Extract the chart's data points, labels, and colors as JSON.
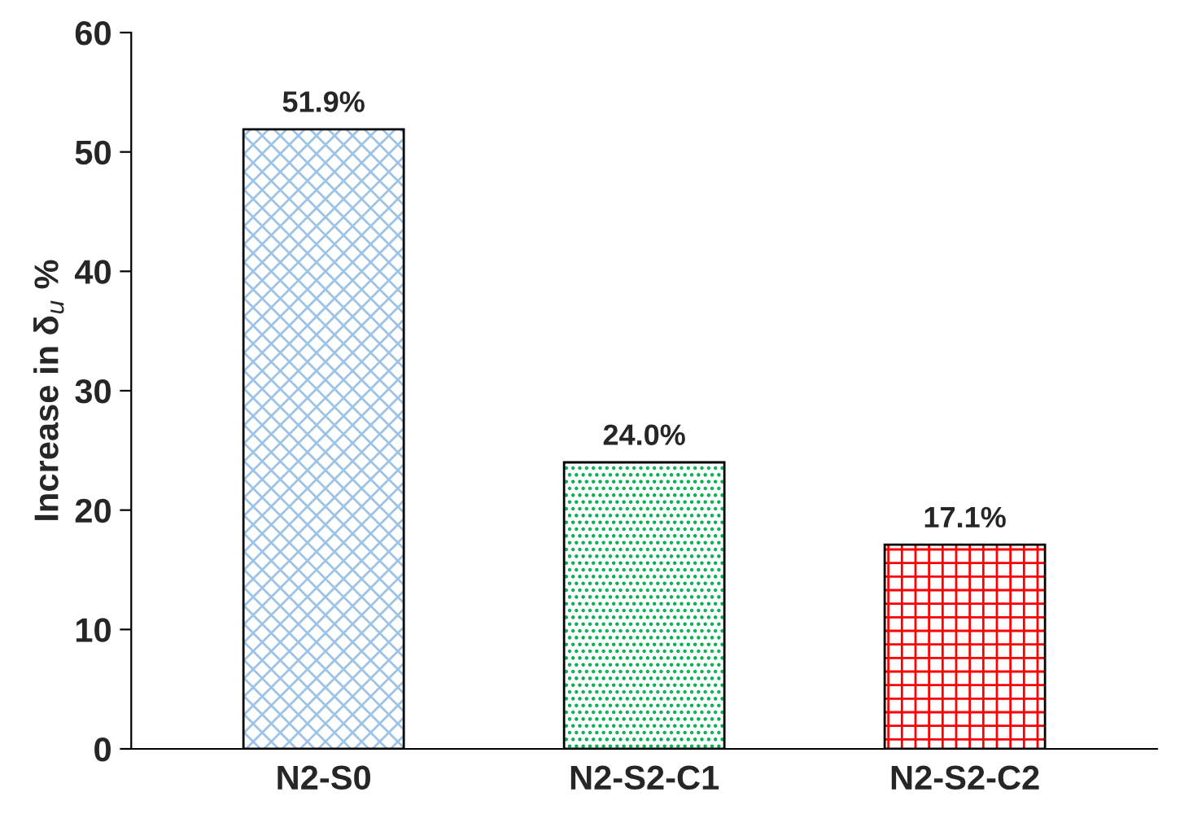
{
  "chart_data": {
    "type": "bar",
    "ylabel": "Increase in δ$_{u}$ %",
    "categories": [
      "N2-S0",
      "N2-S2-C1",
      "N2-S2-C2"
    ],
    "values": [
      51.9,
      24.0,
      17.1
    ],
    "colors": [
      "#9dc3e6",
      "#00b050",
      "#ff0000"
    ],
    "value_labels": [
      "51.9%",
      "24.0%",
      "17.1%"
    ],
    "ylim": [
      0,
      60
    ],
    "yticks": [
      0,
      10,
      20,
      30,
      40,
      50,
      60
    ],
    "grid": false,
    "legend": false
  }
}
